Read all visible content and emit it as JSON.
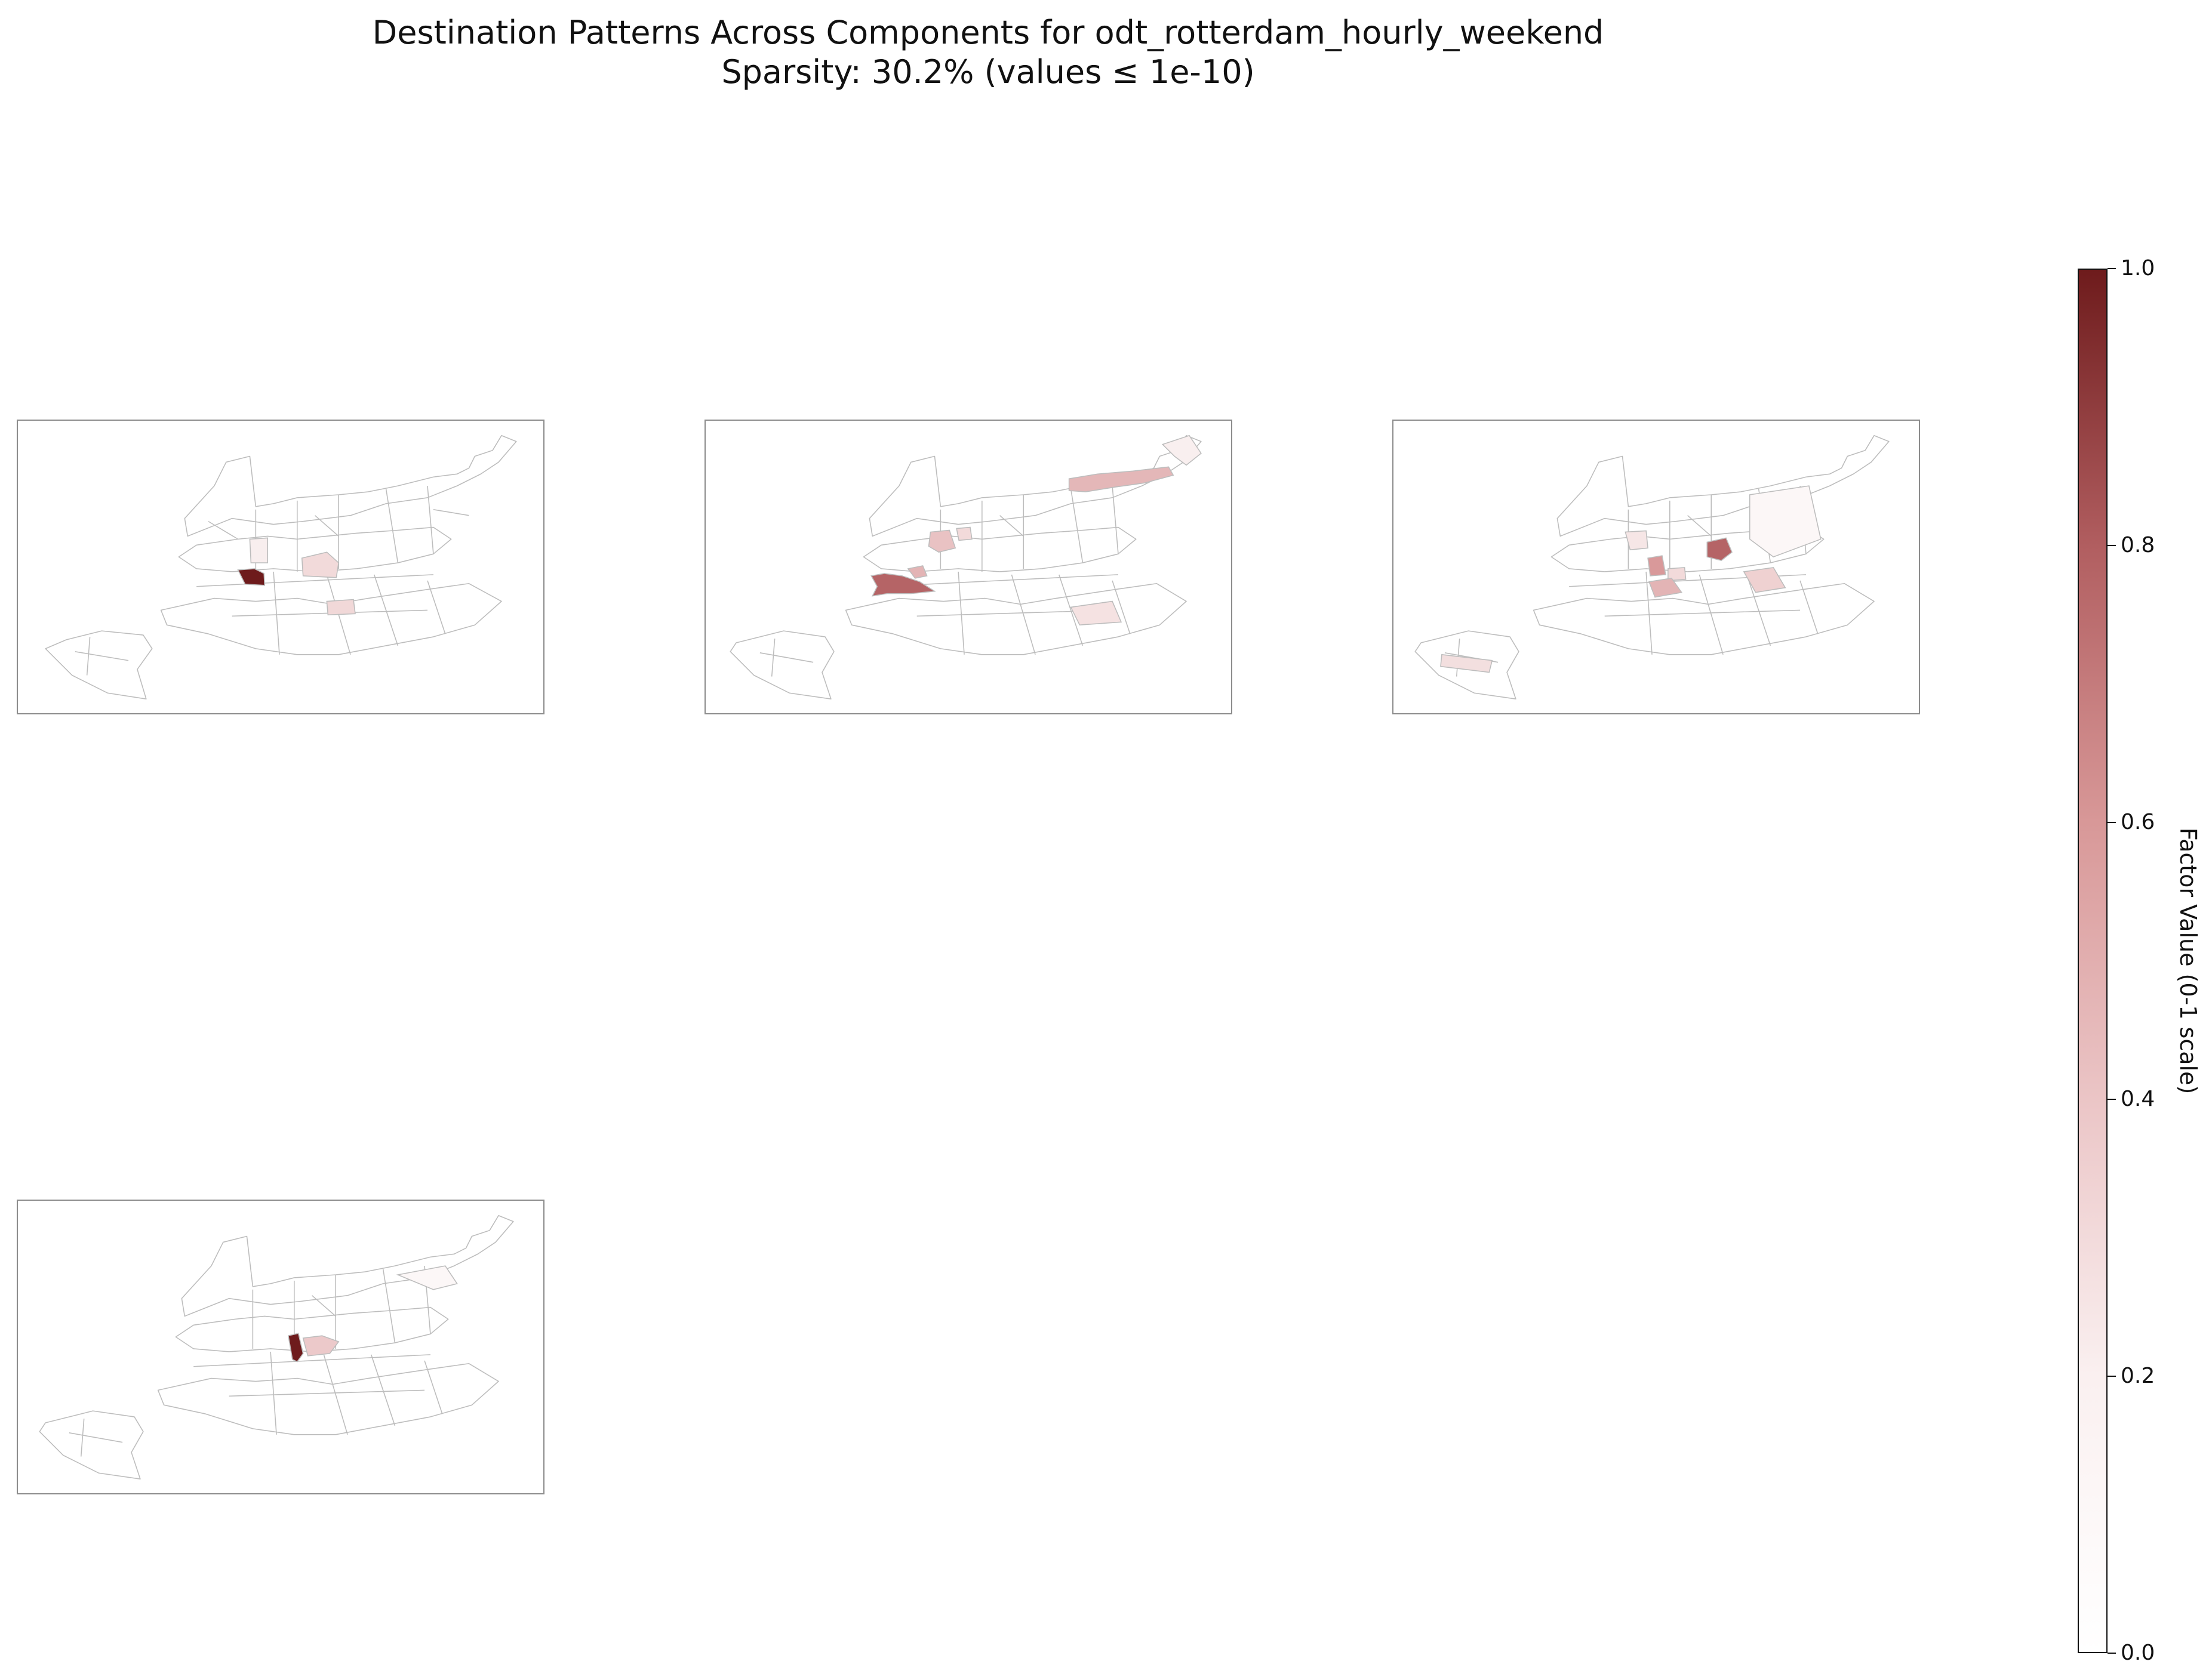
{
  "title": {
    "line1": "Destination Patterns Across Components for odt_rotterdam_hourly_weekend",
    "line2": "Sparsity: 30.2% (values ≤ 1e-10)"
  },
  "colorbar": {
    "label": "Factor Value (0-1 scale)",
    "ticks": [
      "0.0",
      "0.2",
      "0.4",
      "0.6",
      "0.8",
      "1.0"
    ],
    "colors": [
      "#ffffff",
      "#faf0f0",
      "#ebc5c6",
      "#d89898",
      "#b15e60",
      "#6e1b1c"
    ]
  },
  "map_components": [
    {
      "highlights": [
        {
          "zone": "center-west",
          "value": 1.0
        },
        {
          "zone": "center-east",
          "value": 0.25
        },
        {
          "zone": "north-center",
          "value": 0.15
        },
        {
          "zone": "south-center",
          "value": 0.25
        }
      ]
    },
    {
      "highlights": [
        {
          "zone": "west-harbor",
          "value": 0.7
        },
        {
          "zone": "northwest",
          "value": 0.35
        },
        {
          "zone": "northeast-strip",
          "value": 0.4
        },
        {
          "zone": "southeast",
          "value": 0.15
        }
      ]
    },
    {
      "highlights": [
        {
          "zone": "east-center",
          "value": 0.75
        },
        {
          "zone": "center-south",
          "value": 0.45
        },
        {
          "zone": "center-mid",
          "value": 0.35
        },
        {
          "zone": "east-lower",
          "value": 0.3
        },
        {
          "zone": "west-island",
          "value": 0.2
        },
        {
          "zone": "north-west",
          "value": 0.15
        }
      ]
    },
    {
      "highlights": [
        {
          "zone": "center-core",
          "value": 0.95
        },
        {
          "zone": "center-east-small",
          "value": 0.3
        }
      ]
    }
  ]
}
